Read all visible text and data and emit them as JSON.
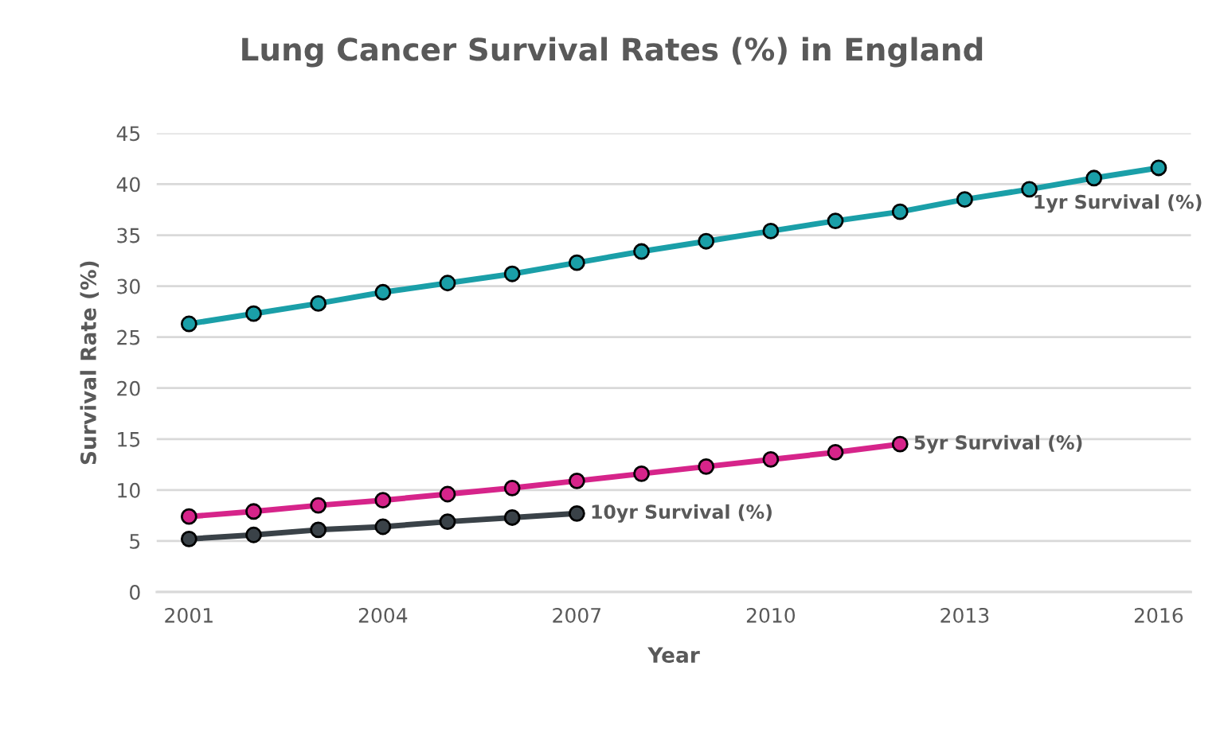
{
  "chart_data": {
    "type": "line",
    "title": "Lung Cancer Survival Rates (%) in England",
    "xlabel": "Year",
    "ylabel": "Survival Rate (%)",
    "x": [
      2001,
      2002,
      2003,
      2004,
      2005,
      2006,
      2007,
      2008,
      2009,
      2010,
      2011,
      2012,
      2013,
      2014,
      2015,
      2016
    ],
    "series": [
      {
        "name": "1yr Survival (%)",
        "color": "#1a9fa8",
        "values": [
          26.3,
          27.3,
          28.3,
          29.4,
          30.3,
          31.2,
          32.3,
          33.4,
          34.4,
          35.4,
          36.4,
          37.3,
          38.5,
          39.5,
          40.6,
          41.6
        ]
      },
      {
        "name": "5yr Survival (%)",
        "color": "#d6248a",
        "values": [
          7.4,
          7.9,
          8.5,
          9.0,
          9.6,
          10.2,
          10.9,
          11.6,
          12.3,
          13.0,
          13.7,
          14.5,
          null,
          null,
          null,
          null
        ]
      },
      {
        "name": "10yr Survival (%)",
        "color": "#3a4248",
        "values": [
          5.2,
          5.6,
          6.1,
          6.4,
          6.9,
          7.3,
          7.7,
          null,
          null,
          null,
          null,
          null,
          null,
          null,
          null,
          null
        ]
      }
    ],
    "xlim": [
      2000.5,
      2016.5
    ],
    "xticks": [
      2001,
      2004,
      2007,
      2010,
      2013,
      2016
    ],
    "ylim": [
      0,
      45
    ],
    "yticks": [
      0,
      5,
      10,
      15,
      20,
      25,
      30,
      35,
      40,
      45
    ],
    "grid": "y",
    "legend": false,
    "marker": "circle",
    "line_style": "solid"
  }
}
